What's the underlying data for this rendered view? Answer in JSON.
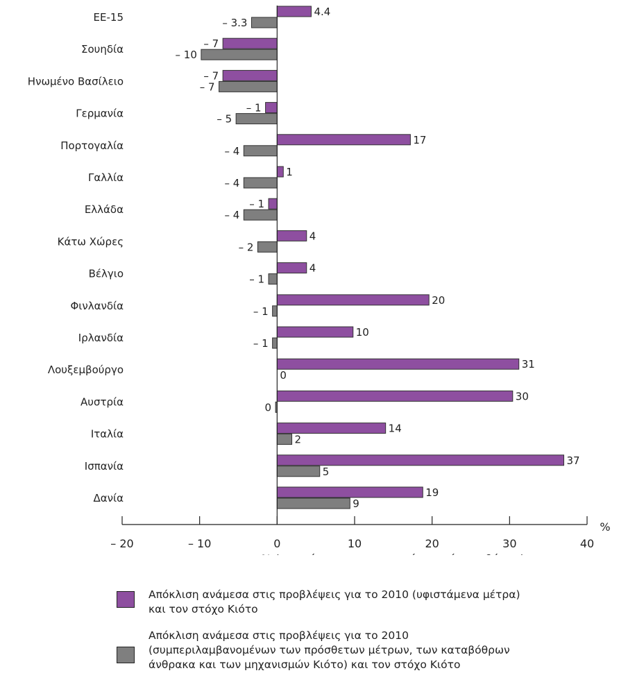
{
  "chart_data": {
    "type": "bar",
    "orientation": "horizontal",
    "categories": [
      "ΕΕ-15",
      "Σουηδία",
      "Ηνωμένο Βασίλειο",
      "Γερμανία",
      "Πορτογαλία",
      "Γαλλία",
      "Ελλάδα",
      "Κάτω Χώρες",
      "Βέλγιο",
      "Φινλανδία",
      "Ιρλανδία",
      "Λουξεμβούργο",
      "Αυστρία",
      "Ιταλία",
      "Ισπανία",
      "Δανία"
    ],
    "series": [
      {
        "name": "Απόκλιση ανάμεσα στις προβλέψεις για το 2010 (υφιστάμενα μέτρα)\nκαι τον στόχο Κιότο",
        "color": "#8e4fa0",
        "values": [
          4.4,
          -7,
          -7,
          -1.5,
          17.2,
          0.8,
          -1.1,
          3.8,
          3.8,
          19.6,
          9.8,
          31.2,
          30.4,
          14,
          37,
          18.8
        ],
        "labels": [
          "4.4",
          "– 7",
          "– 7",
          "– 1",
          "17",
          "1",
          "– 1",
          "4",
          "4",
          "20",
          "10",
          "31",
          "30",
          "14",
          "37",
          "19"
        ]
      },
      {
        "name": "Απόκλιση ανάμεσα στις προβλέψεις για το 2010\n(συμπεριλαμβανομένων των πρόσθετων μέτρων, των καταβόθρων\nάνθρακα και των μηχανισμών Κιότο) και τον στόχο Κιότο",
        "color": "#7f7f7f",
        "values": [
          -3.3,
          -9.8,
          -7.5,
          -5.3,
          -4.3,
          -4.3,
          -4.3,
          -2.5,
          -1.1,
          -0.6,
          -0.6,
          0,
          -0.2,
          1.9,
          5.5,
          9.4
        ],
        "labels": [
          "– 3.3",
          "– 10",
          "– 7",
          "– 5",
          "– 4",
          "– 4",
          "– 4",
          "– 2",
          "– 1",
          "– 1",
          "– 1",
          "0",
          "0",
          "2",
          "5",
          "9"
        ]
      }
    ],
    "xlim": [
      -20,
      40
    ],
    "xticks": [
      -20,
      -10,
      0,
      10,
      20,
      30,
      40
    ],
    "xtick_labels": [
      "– 20",
      "– 10",
      "0",
      "10",
      "20",
      "30",
      "40"
    ],
    "xlabel": "% (σε σχέση με τις εκπομπές του έτους βάσης)",
    "xunit": "%",
    "grid": false,
    "legend_position": "bottom"
  }
}
